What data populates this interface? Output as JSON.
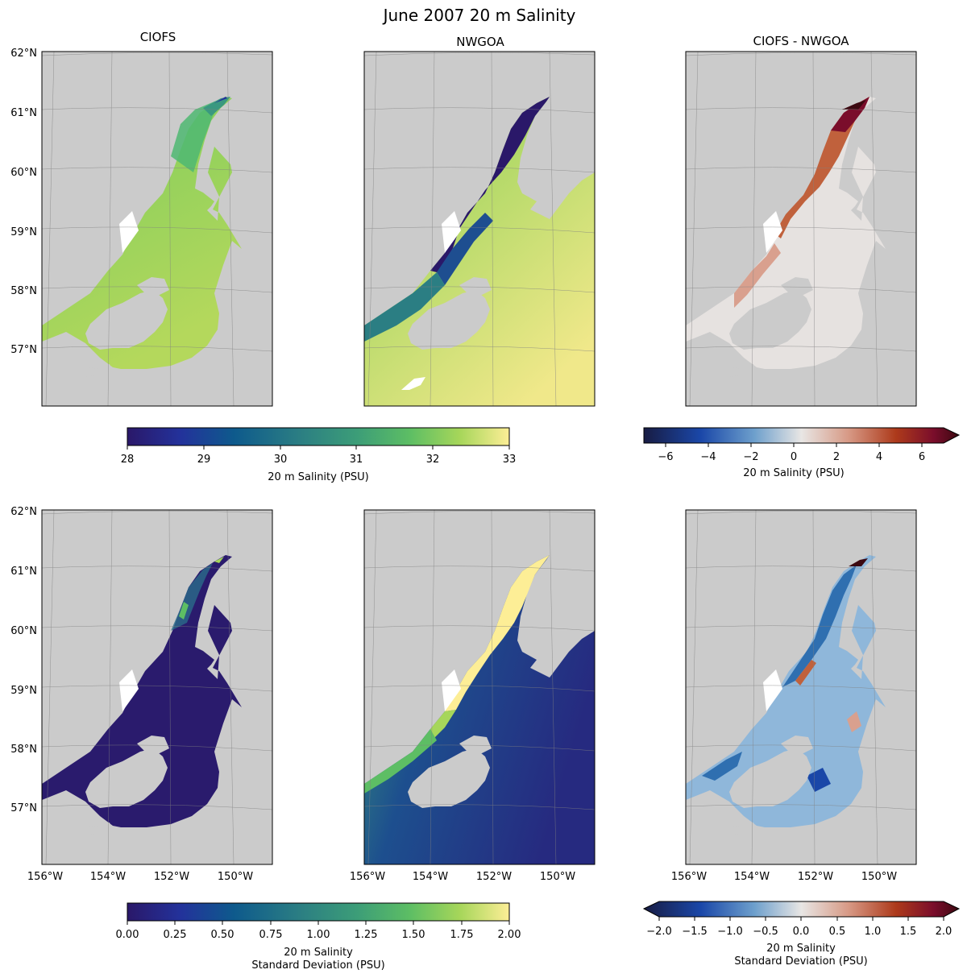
{
  "figure": {
    "title": "June 2007 20 m Salinity",
    "column_titles": [
      "CIOFS",
      "NWGOA",
      "CIOFS - NWGOA"
    ],
    "lat_ticks": [
      "62°N",
      "61°N",
      "60°N",
      "59°N",
      "58°N",
      "57°N"
    ],
    "lon_ticks": [
      "156°W",
      "154°W",
      "152°W",
      "150°W"
    ]
  },
  "colorbars": {
    "mean": {
      "ticks": [
        "28",
        "29",
        "30",
        "31",
        "32",
        "33"
      ],
      "label": "20 m Salinity (PSU)"
    },
    "mean_diff": {
      "ticks": [
        "−6",
        "−4",
        "−2",
        "0",
        "2",
        "4",
        "6"
      ],
      "label": "20 m Salinity (PSU)"
    },
    "std": {
      "ticks": [
        "0.00",
        "0.25",
        "0.50",
        "0.75",
        "1.00",
        "1.25",
        "1.50",
        "1.75",
        "2.00"
      ],
      "label_line1": "20 m Salinity",
      "label_line2": "Standard Deviation (PSU)"
    },
    "std_diff": {
      "ticks": [
        "−2.0",
        "−1.5",
        "−1.0",
        "−0.5",
        "0.0",
        "0.5",
        "1.0",
        "1.5",
        "2.0"
      ],
      "label_line1": "20 m Salinity",
      "label_line2": "Standard Deviation (PSU)"
    }
  },
  "colors": {
    "land": "#cbcbcb",
    "haline": [
      "#2a1869",
      "#23329b",
      "#0e5a8c",
      "#2b7e83",
      "#3c9d78",
      "#5dbe64",
      "#a6d65a",
      "#fdee96"
    ],
    "balance": [
      "#181c43",
      "#1a47a8",
      "#6d9fcc",
      "#e8e6e4",
      "#d79985",
      "#ad3a1b",
      "#7a0d2b",
      "#3c0911"
    ]
  }
}
